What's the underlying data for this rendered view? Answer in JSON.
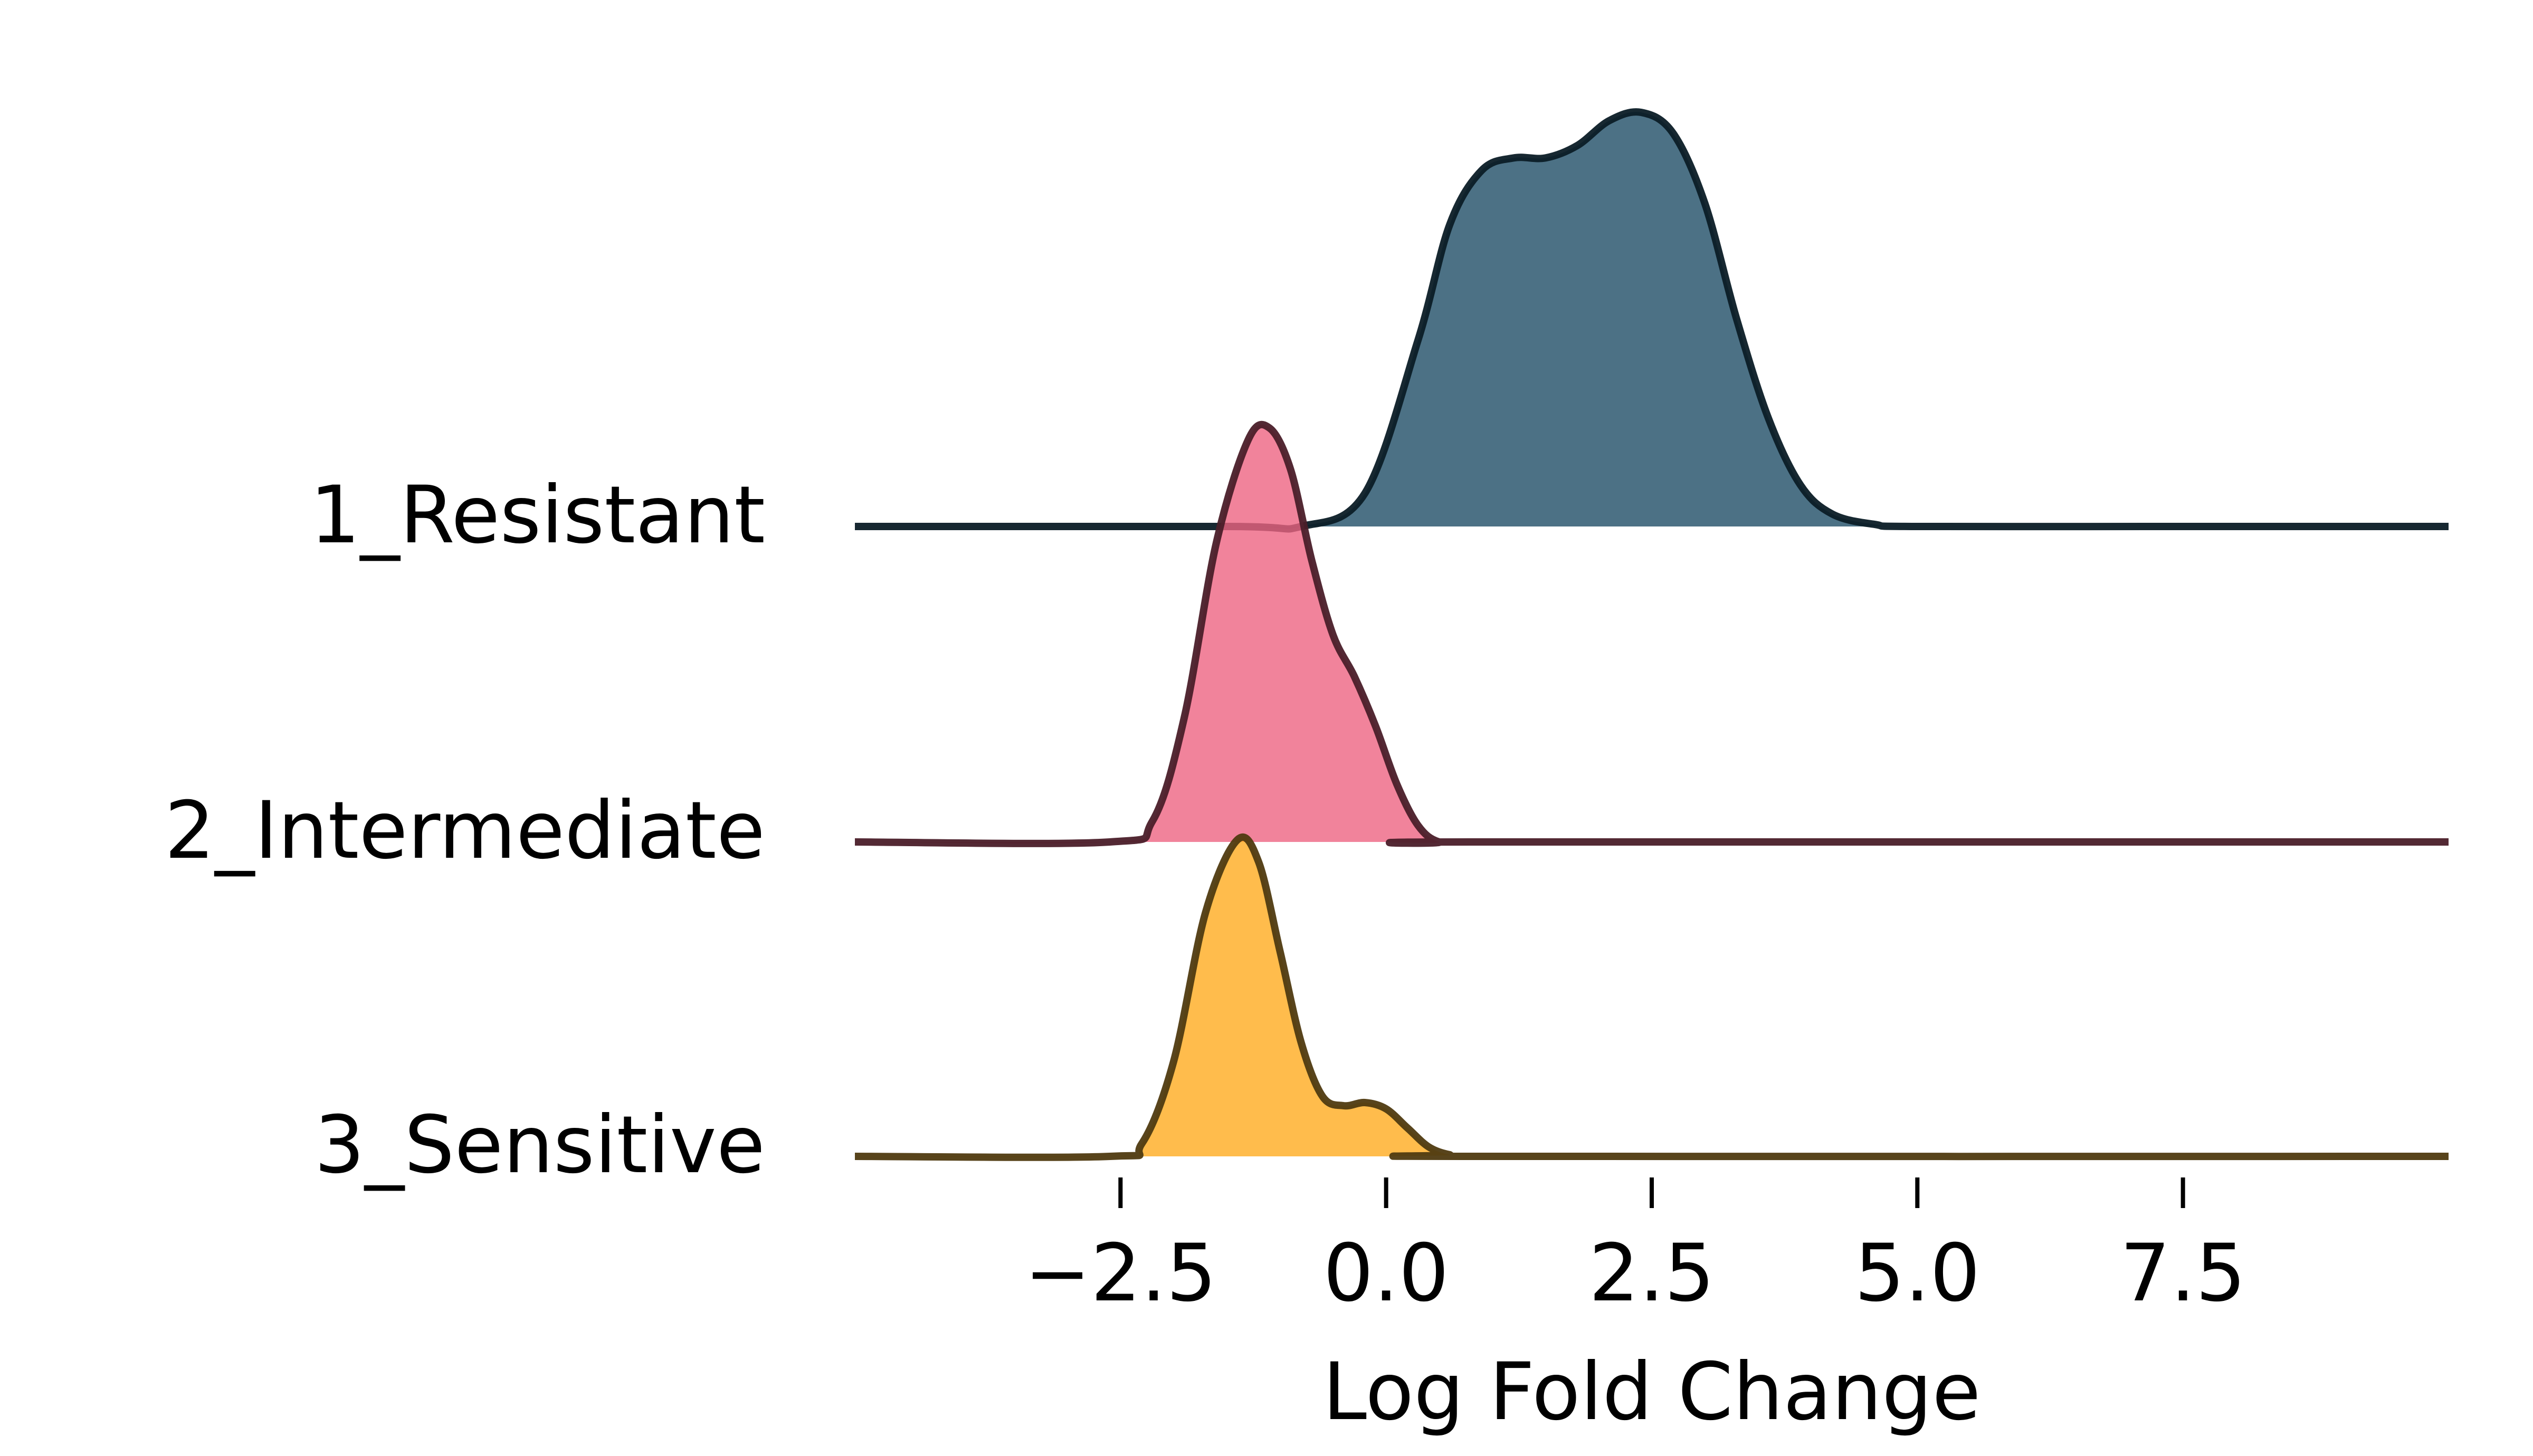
{
  "chart_data": {
    "type": "ridgeline",
    "xlabel": "Log Fold Change",
    "ylabel": "",
    "title": "",
    "xlim": [
      -5.0,
      10.0
    ],
    "xticks": [
      {
        "value": -2.5,
        "label": "−2.5"
      },
      {
        "value": 0.0,
        "label": "0.0"
      },
      {
        "value": 2.5,
        "label": "2.5"
      },
      {
        "value": 5.0,
        "label": "5.0"
      },
      {
        "value": 7.5,
        "label": "7.5"
      }
    ],
    "grid": false,
    "legend": "none",
    "series": [
      {
        "name": "1_Resistant",
        "fill_color": "#1f4e66",
        "line_color": "#0b1c26",
        "density": {
          "x": [
            -5.0,
            -1.5,
            -0.8,
            -0.2,
            0.3,
            0.6,
            0.9,
            1.2,
            1.5,
            1.8,
            2.1,
            2.4,
            2.7,
            3.0,
            3.3,
            3.6,
            3.9,
            4.2,
            4.6,
            5.0,
            7.5,
            10.0
          ],
          "y": [
            0.0,
            0.0,
            0.0,
            0.08,
            0.45,
            0.73,
            0.86,
            0.89,
            0.89,
            0.92,
            0.98,
            1.0,
            0.95,
            0.78,
            0.5,
            0.26,
            0.1,
            0.03,
            0.005,
            0.0,
            0.0,
            0.0
          ]
        }
      },
      {
        "name": "2_Intermediate",
        "fill_color": "#ee6482",
        "line_color": "#4a1e29",
        "density": {
          "x": [
            -5.0,
            -2.6,
            -2.2,
            -1.9,
            -1.6,
            -1.3,
            -1.1,
            -0.9,
            -0.7,
            -0.5,
            -0.3,
            -0.1,
            0.1,
            0.3,
            0.5,
            0.8,
            10.0
          ],
          "y": [
            0.0,
            0.0,
            0.05,
            0.3,
            0.72,
            0.97,
            1.0,
            0.9,
            0.68,
            0.5,
            0.4,
            0.28,
            0.14,
            0.04,
            0.0,
            0.0,
            0.0
          ]
        }
      },
      {
        "name": "3_Sensitive",
        "fill_color": "#ffab1f",
        "line_color": "#4f3a10",
        "density": {
          "x": [
            -5.0,
            -2.6,
            -2.3,
            -2.0,
            -1.7,
            -1.4,
            -1.2,
            -1.0,
            -0.8,
            -0.6,
            -0.4,
            -0.2,
            0.0,
            0.2,
            0.4,
            0.6,
            0.8,
            10.0
          ],
          "y": [
            0.0,
            0.0,
            0.04,
            0.3,
            0.77,
            1.0,
            0.93,
            0.65,
            0.36,
            0.19,
            0.16,
            0.17,
            0.15,
            0.09,
            0.03,
            0.005,
            0.0,
            0.0
          ]
        }
      }
    ]
  }
}
